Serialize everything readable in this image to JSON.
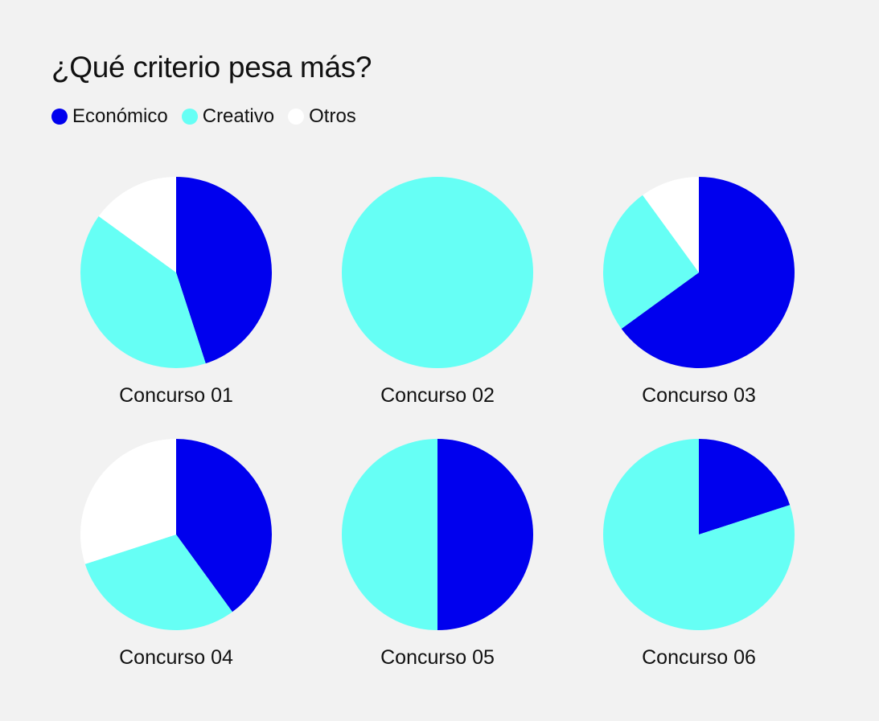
{
  "title": "¿Qué criterio pesa más?",
  "legend": [
    {
      "label": "Económico",
      "color": "#0000ee"
    },
    {
      "label": "Creativo",
      "color": "#66fff5"
    },
    {
      "label": "Otros",
      "color": "#ffffff"
    }
  ],
  "chart_data": {
    "type": "pie",
    "title": "¿Qué criterio pesa más?",
    "series_names": [
      "Económico",
      "Creativo",
      "Otros"
    ],
    "colors": {
      "Económico": "#0000ee",
      "Creativo": "#66fff5",
      "Otros": "#ffffff"
    },
    "legend_position": "top-left",
    "pies": [
      {
        "label": "Concurso 01",
        "values": {
          "Económico": 45,
          "Creativo": 40,
          "Otros": 15
        }
      },
      {
        "label": "Concurso 02",
        "values": {
          "Económico": 0,
          "Creativo": 100,
          "Otros": 0
        }
      },
      {
        "label": "Concurso 03",
        "values": {
          "Económico": 65,
          "Creativo": 25,
          "Otros": 10
        }
      },
      {
        "label": "Concurso 04",
        "values": {
          "Económico": 40,
          "Creativo": 30,
          "Otros": 30
        }
      },
      {
        "label": "Concurso 05",
        "values": {
          "Económico": 50,
          "Creativo": 50,
          "Otros": 0
        }
      },
      {
        "label": "Concurso 06",
        "values": {
          "Económico": 20,
          "Creativo": 80,
          "Otros": 0
        }
      }
    ]
  }
}
